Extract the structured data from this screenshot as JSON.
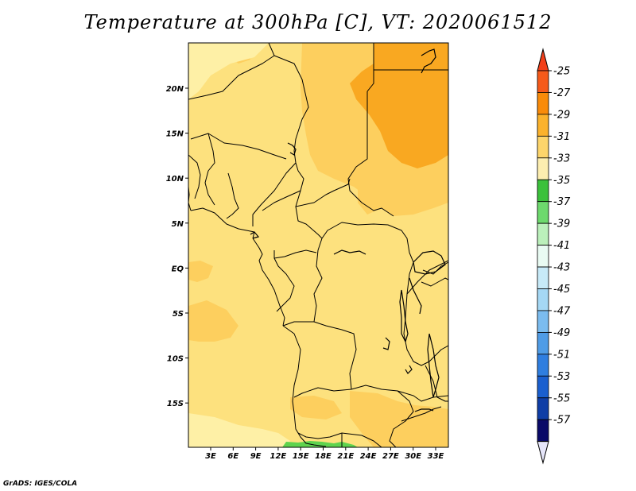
{
  "title": "Temperature at 300hPa [C], VT: 2020061512",
  "credit": "GrADS: IGES/COLA",
  "map": {
    "lon_ticks": [
      "3E",
      "6E",
      "9E",
      "12E",
      "15E",
      "18E",
      "21E",
      "24E",
      "27E",
      "30E",
      "33E"
    ],
    "lat_ticks": [
      "20N",
      "15N",
      "10N",
      "5N",
      "EQ",
      "5S",
      "10S",
      "15S"
    ],
    "colors": {
      "t_33_31": "#fde17e",
      "t_31_29": "#fdcf5e",
      "t_29_27": "#f9a821",
      "t_35_33": "#fef0a6",
      "t_39_37": "#5fd34e"
    }
  },
  "colorbar": {
    "labels": [
      "-25",
      "-27",
      "-29",
      "-31",
      "-33",
      "-35",
      "-37",
      "-39",
      "-41",
      "-43",
      "-45",
      "-47",
      "-49",
      "-51",
      "-53",
      "-55",
      "-57"
    ],
    "colors": [
      "#f65a1a",
      "#f98b0a",
      "#fbb22c",
      "#fdd56b",
      "#fdeeb0",
      "#3bc13b",
      "#6dd96d",
      "#bbf0bb",
      "#e9fbf3",
      "#c7eaf8",
      "#a5d8f5",
      "#7bbcef",
      "#4f9ce6",
      "#2f7ee0",
      "#1a5fcf",
      "#0f3ea6",
      "#0a0a68"
    ],
    "top_arrow_color": "#f2401a",
    "bottom_arrow_color": "#e6e6fa"
  }
}
